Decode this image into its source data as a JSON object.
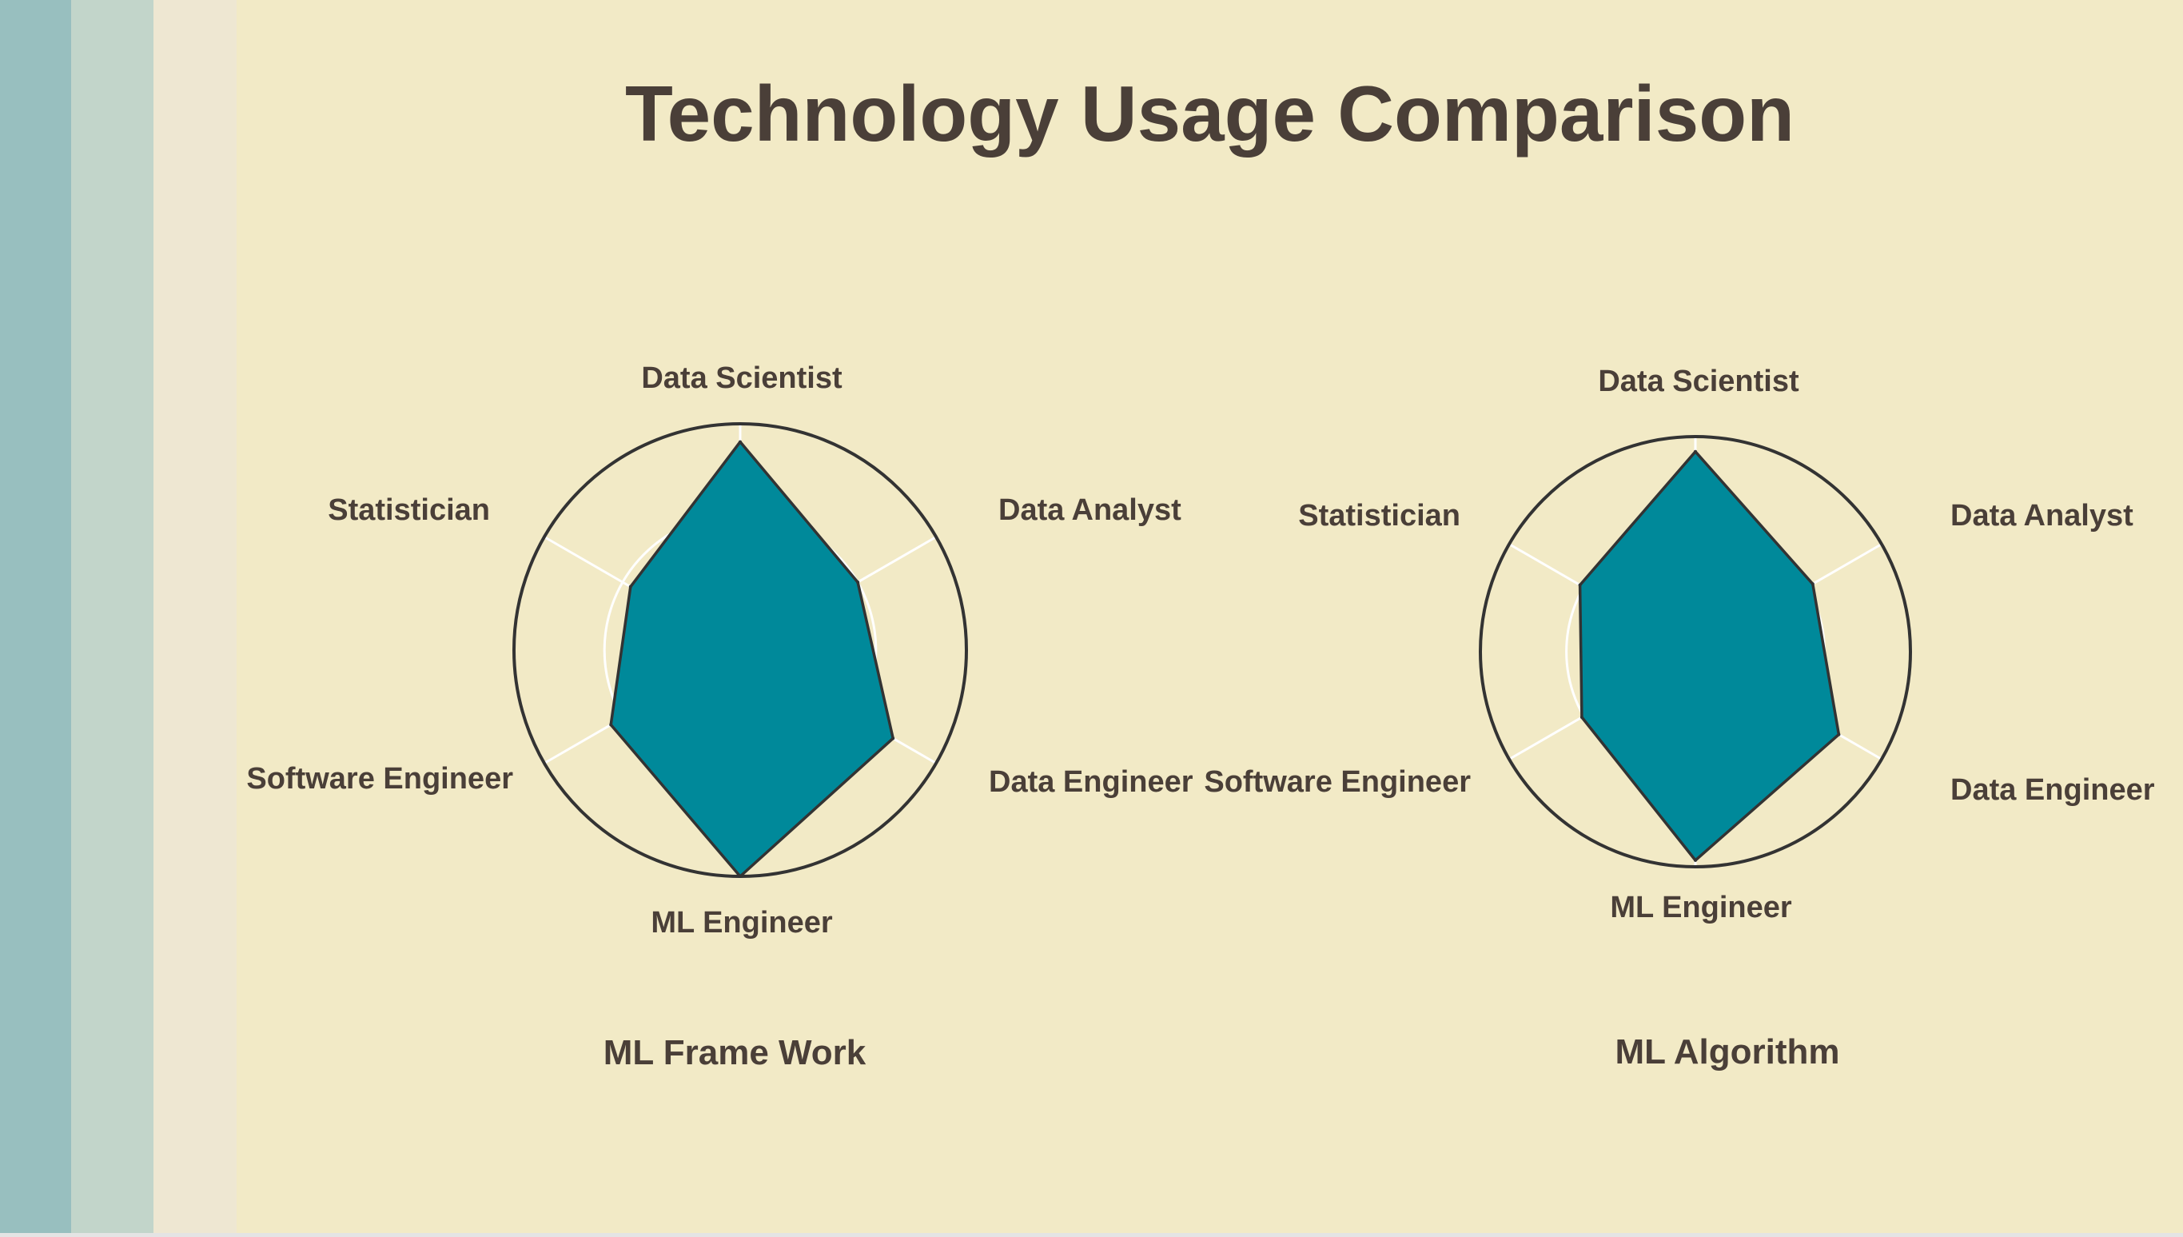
{
  "page": {
    "title": "Technology Usage Comparison"
  },
  "colors": {
    "background": "#F2EAC6",
    "fill": "#00899A",
    "outline": "#333333",
    "grid": "#FFFFFF",
    "text": "#4A3F38",
    "stripes": [
      "#98BFBF",
      "#C2D5CA",
      "#EEE7D2"
    ]
  },
  "chart_data": [
    {
      "type": "radar",
      "title": "ML Frame Work",
      "axes": [
        "Data Scientist",
        "Data Analyst",
        "Data Engineer",
        "ML Engineer",
        "Software Engineer",
        "Statistician"
      ],
      "values": [
        0.92,
        0.6,
        0.78,
        1.0,
        0.66,
        0.56
      ],
      "rmax": 1.0,
      "grid_levels": [
        0.2,
        0.6,
        1.0
      ],
      "legend": "none"
    },
    {
      "type": "radar",
      "title": "ML Algorithm",
      "axes": [
        "Data Scientist",
        "Data Analyst",
        "Data Engineer",
        "ML Engineer",
        "Software Engineer",
        "Statistician"
      ],
      "values": [
        0.93,
        0.63,
        0.77,
        0.97,
        0.61,
        0.62
      ],
      "rmax": 1.0,
      "grid_levels": [
        0.2,
        0.6,
        1.0
      ],
      "legend": "none"
    }
  ]
}
